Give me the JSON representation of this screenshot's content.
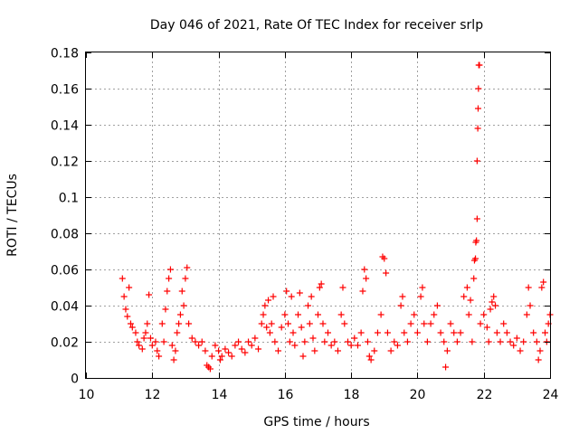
{
  "chart_data": {
    "type": "scatter",
    "title": "Day 046 of 2021, Rate Of TEC Index for receiver srlp",
    "xlabel": "GPS time / hours",
    "ylabel": "ROTI / TECUs",
    "xlim": [
      10,
      24
    ],
    "ylim": [
      0,
      0.18
    ],
    "x_ticks": [
      10,
      12,
      14,
      16,
      18,
      20,
      22,
      24
    ],
    "x_tick_labels": [
      "10",
      "12",
      "14",
      "16",
      "18",
      "20",
      "22",
      "24"
    ],
    "y_ticks": [
      0,
      0.02,
      0.04,
      0.06,
      0.08,
      0.1,
      0.12,
      0.14,
      0.16,
      0.18
    ],
    "y_tick_labels": [
      "0",
      "0.02",
      "0.04",
      "0.06",
      "0.08",
      "0.1",
      "0.12",
      "0.14",
      "0.16",
      "0.18"
    ],
    "grid": true,
    "marker": "plus",
    "series": [
      {
        "name": "ROTI",
        "color": "#ff0000",
        "points": [
          [
            11.1,
            0.055
          ],
          [
            11.15,
            0.045
          ],
          [
            11.2,
            0.038
          ],
          [
            11.25,
            0.034
          ],
          [
            11.3,
            0.05
          ],
          [
            11.35,
            0.03
          ],
          [
            11.4,
            0.028
          ],
          [
            11.5,
            0.025
          ],
          [
            11.55,
            0.02
          ],
          [
            11.6,
            0.018
          ],
          [
            11.7,
            0.016
          ],
          [
            11.75,
            0.022
          ],
          [
            11.8,
            0.025
          ],
          [
            11.85,
            0.03
          ],
          [
            11.9,
            0.046
          ],
          [
            11.95,
            0.022
          ],
          [
            12.0,
            0.018
          ],
          [
            12.1,
            0.02
          ],
          [
            12.15,
            0.015
          ],
          [
            12.2,
            0.012
          ],
          [
            12.3,
            0.03
          ],
          [
            12.35,
            0.02
          ],
          [
            12.4,
            0.038
          ],
          [
            12.45,
            0.048
          ],
          [
            12.5,
            0.055
          ],
          [
            12.55,
            0.06
          ],
          [
            12.6,
            0.018
          ],
          [
            12.65,
            0.01
          ],
          [
            12.7,
            0.015
          ],
          [
            12.75,
            0.025
          ],
          [
            12.8,
            0.03
          ],
          [
            12.85,
            0.035
          ],
          [
            12.9,
            0.048
          ],
          [
            12.95,
            0.04
          ],
          [
            13.0,
            0.055
          ],
          [
            13.05,
            0.061
          ],
          [
            13.1,
            0.03
          ],
          [
            13.2,
            0.022
          ],
          [
            13.3,
            0.02
          ],
          [
            13.4,
            0.018
          ],
          [
            13.5,
            0.02
          ],
          [
            13.6,
            0.015
          ],
          [
            13.65,
            0.007
          ],
          [
            13.7,
            0.006
          ],
          [
            13.75,
            0.005
          ],
          [
            13.8,
            0.012
          ],
          [
            13.9,
            0.018
          ],
          [
            14.0,
            0.015
          ],
          [
            14.05,
            0.01
          ],
          [
            14.1,
            0.012
          ],
          [
            14.2,
            0.016
          ],
          [
            14.3,
            0.014
          ],
          [
            14.4,
            0.012
          ],
          [
            14.5,
            0.018
          ],
          [
            14.6,
            0.02
          ],
          [
            14.7,
            0.016
          ],
          [
            14.8,
            0.014
          ],
          [
            14.9,
            0.02
          ],
          [
            15.0,
            0.018
          ],
          [
            15.1,
            0.022
          ],
          [
            15.2,
            0.016
          ],
          [
            15.3,
            0.03
          ],
          [
            15.35,
            0.035
          ],
          [
            15.4,
            0.04
          ],
          [
            15.45,
            0.028
          ],
          [
            15.5,
            0.043
          ],
          [
            15.55,
            0.025
          ],
          [
            15.6,
            0.03
          ],
          [
            15.65,
            0.045
          ],
          [
            15.7,
            0.02
          ],
          [
            15.8,
            0.015
          ],
          [
            15.9,
            0.028
          ],
          [
            16.0,
            0.035
          ],
          [
            16.05,
            0.048
          ],
          [
            16.1,
            0.03
          ],
          [
            16.15,
            0.02
          ],
          [
            16.2,
            0.045
          ],
          [
            16.25,
            0.025
          ],
          [
            16.3,
            0.018
          ],
          [
            16.4,
            0.035
          ],
          [
            16.45,
            0.047
          ],
          [
            16.5,
            0.028
          ],
          [
            16.55,
            0.012
          ],
          [
            16.6,
            0.02
          ],
          [
            16.7,
            0.04
          ],
          [
            16.75,
            0.03
          ],
          [
            16.8,
            0.045
          ],
          [
            16.85,
            0.022
          ],
          [
            16.9,
            0.015
          ],
          [
            17.0,
            0.035
          ],
          [
            17.05,
            0.05
          ],
          [
            17.1,
            0.052
          ],
          [
            17.15,
            0.03
          ],
          [
            17.2,
            0.02
          ],
          [
            17.3,
            0.025
          ],
          [
            17.4,
            0.018
          ],
          [
            17.5,
            0.02
          ],
          [
            17.6,
            0.015
          ],
          [
            17.7,
            0.035
          ],
          [
            17.75,
            0.05
          ],
          [
            17.8,
            0.03
          ],
          [
            17.9,
            0.02
          ],
          [
            18.0,
            0.018
          ],
          [
            18.1,
            0.022
          ],
          [
            18.2,
            0.018
          ],
          [
            18.3,
            0.025
          ],
          [
            18.35,
            0.048
          ],
          [
            18.4,
            0.06
          ],
          [
            18.45,
            0.055
          ],
          [
            18.5,
            0.02
          ],
          [
            18.55,
            0.012
          ],
          [
            18.6,
            0.01
          ],
          [
            18.7,
            0.015
          ],
          [
            18.8,
            0.025
          ],
          [
            18.9,
            0.035
          ],
          [
            18.95,
            0.067
          ],
          [
            19.0,
            0.066
          ],
          [
            19.05,
            0.058
          ],
          [
            19.1,
            0.025
          ],
          [
            19.2,
            0.015
          ],
          [
            19.3,
            0.02
          ],
          [
            19.4,
            0.018
          ],
          [
            19.5,
            0.04
          ],
          [
            19.55,
            0.045
          ],
          [
            19.6,
            0.025
          ],
          [
            19.7,
            0.02
          ],
          [
            19.8,
            0.03
          ],
          [
            19.9,
            0.035
          ],
          [
            20.0,
            0.025
          ],
          [
            20.1,
            0.045
          ],
          [
            20.15,
            0.05
          ],
          [
            20.2,
            0.03
          ],
          [
            20.3,
            0.02
          ],
          [
            20.4,
            0.03
          ],
          [
            20.5,
            0.035
          ],
          [
            20.6,
            0.04
          ],
          [
            20.7,
            0.025
          ],
          [
            20.8,
            0.02
          ],
          [
            20.85,
            0.006
          ],
          [
            20.9,
            0.015
          ],
          [
            21.0,
            0.03
          ],
          [
            21.1,
            0.025
          ],
          [
            21.2,
            0.02
          ],
          [
            21.3,
            0.025
          ],
          [
            21.4,
            0.045
          ],
          [
            21.5,
            0.05
          ],
          [
            21.55,
            0.035
          ],
          [
            21.6,
            0.043
          ],
          [
            21.65,
            0.02
          ],
          [
            21.7,
            0.055
          ],
          [
            21.72,
            0.065
          ],
          [
            21.75,
            0.066
          ],
          [
            21.76,
            0.075
          ],
          [
            21.78,
            0.076
          ],
          [
            21.8,
            0.088
          ],
          [
            21.8,
            0.12
          ],
          [
            21.82,
            0.138
          ],
          [
            21.83,
            0.149
          ],
          [
            21.84,
            0.16
          ],
          [
            21.85,
            0.173
          ],
          [
            21.87,
            0.173
          ],
          [
            21.9,
            0.03
          ],
          [
            22.0,
            0.035
          ],
          [
            22.1,
            0.028
          ],
          [
            22.15,
            0.02
          ],
          [
            22.2,
            0.038
          ],
          [
            22.25,
            0.042
          ],
          [
            22.3,
            0.045
          ],
          [
            22.35,
            0.04
          ],
          [
            22.4,
            0.025
          ],
          [
            22.5,
            0.02
          ],
          [
            22.6,
            0.03
          ],
          [
            22.7,
            0.025
          ],
          [
            22.8,
            0.02
          ],
          [
            22.9,
            0.018
          ],
          [
            23.0,
            0.022
          ],
          [
            23.1,
            0.015
          ],
          [
            23.2,
            0.02
          ],
          [
            23.3,
            0.035
          ],
          [
            23.35,
            0.05
          ],
          [
            23.4,
            0.04
          ],
          [
            23.5,
            0.025
          ],
          [
            23.6,
            0.02
          ],
          [
            23.65,
            0.01
          ],
          [
            23.7,
            0.015
          ],
          [
            23.75,
            0.05
          ],
          [
            23.8,
            0.053
          ],
          [
            23.85,
            0.025
          ],
          [
            23.9,
            0.02
          ],
          [
            23.95,
            0.03
          ],
          [
            24.0,
            0.035
          ]
        ]
      }
    ]
  }
}
